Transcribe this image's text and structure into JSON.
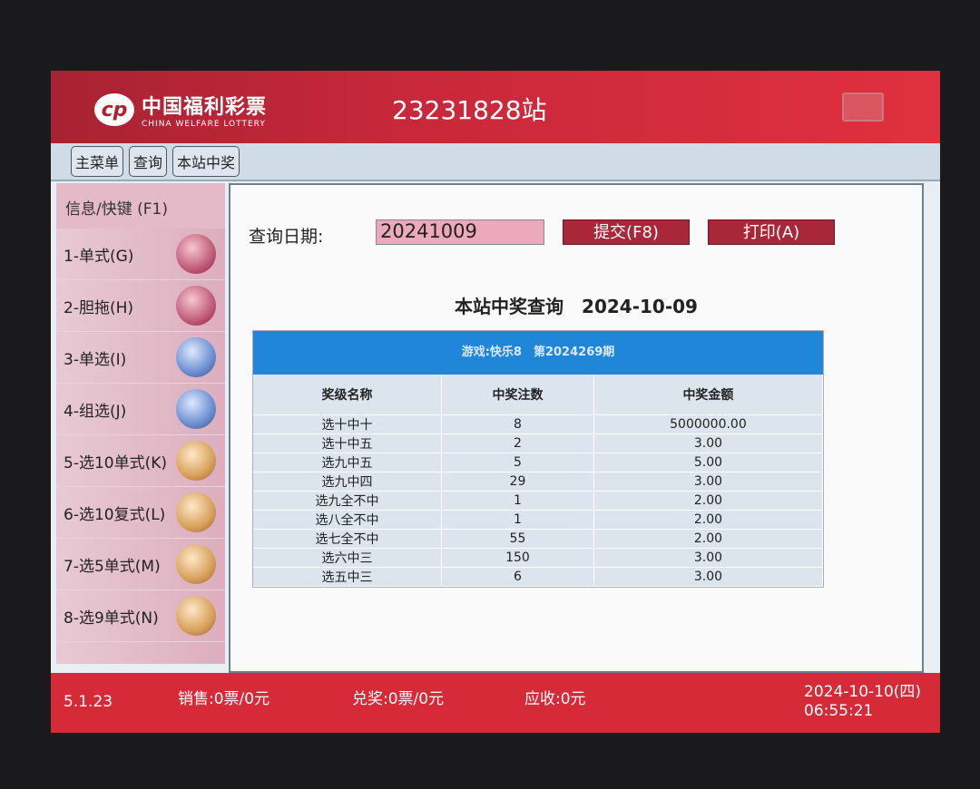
{
  "header": {
    "logo_cn": "中国福利彩票",
    "logo_en": "CHINA WELFARE LOTTERY",
    "station": "23231828站"
  },
  "nav": [
    "主菜单",
    "查询",
    "本站中奖"
  ],
  "sidebar": {
    "header": "信息/快键 (F1)",
    "items": [
      {
        "label": "1-单式(G)",
        "icon": "ssq-ball"
      },
      {
        "label": "2-胆拖(H)",
        "icon": "ssq-ball"
      },
      {
        "label": "3-单选(I)",
        "icon": "3d-ball"
      },
      {
        "label": "4-组选(J)",
        "icon": "3d-ball"
      },
      {
        "label": "5-选10单式(K)",
        "icon": "kl8-ball"
      },
      {
        "label": "6-选10复式(L)",
        "icon": "kl8-ball"
      },
      {
        "label": "7-选5单式(M)",
        "icon": "kl8-ball"
      },
      {
        "label": "8-选9单式(N)",
        "icon": "kl8-ball"
      }
    ]
  },
  "query": {
    "label": "查询日期:",
    "date": "20241009",
    "submit": "提交(F8)",
    "print": "打印(A)"
  },
  "result": {
    "title": "本站中奖查询　2024-10-09",
    "band": "游戏:快乐8　第2024269期",
    "columns": [
      "奖级名称",
      "中奖注数",
      "中奖金额"
    ],
    "rows": [
      [
        "选十中十",
        "8",
        "5000000.00"
      ],
      [
        "选十中五",
        "2",
        "3.00"
      ],
      [
        "选九中五",
        "5",
        "5.00"
      ],
      [
        "选九中四",
        "29",
        "3.00"
      ],
      [
        "选九全不中",
        "1",
        "2.00"
      ],
      [
        "选八全不中",
        "1",
        "2.00"
      ],
      [
        "选七全不中",
        "55",
        "2.00"
      ],
      [
        "选六中三",
        "150",
        "3.00"
      ],
      [
        "选五中三",
        "6",
        "3.00"
      ]
    ]
  },
  "footer": {
    "version": "5.1.23",
    "sales": "销售:0票/0元",
    "redeem": "兑奖:0票/0元",
    "receivable": "应收:0元",
    "date": "2024-10-10(四)",
    "time": "06:55:21"
  }
}
